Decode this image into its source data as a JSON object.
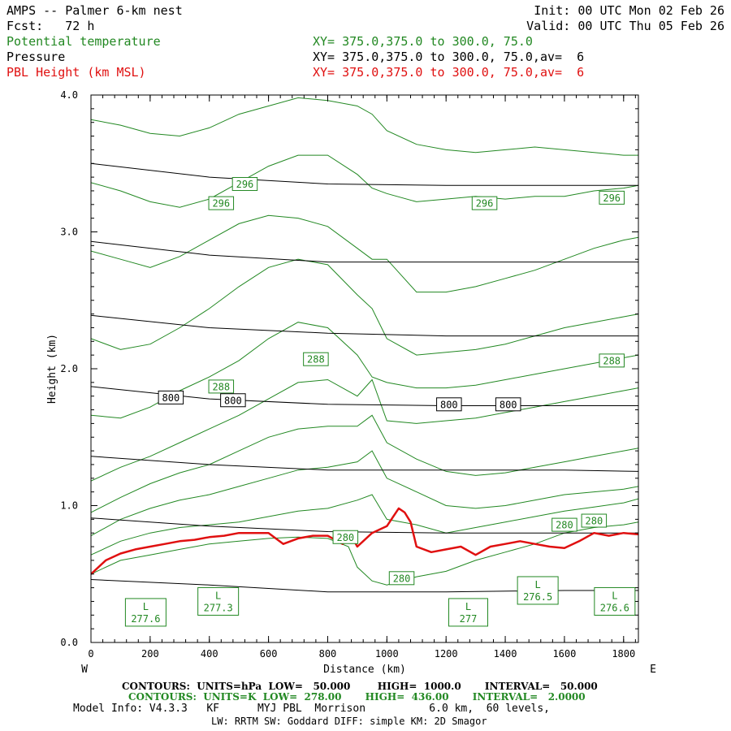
{
  "header": {
    "title": "AMPS -- Palmer 6-km nest",
    "forecast": "Fcst:   72 h",
    "init": "Init: 00 UTC Mon 02 Feb 26",
    "valid": "Valid: 00 UTC Thu 05 Feb 26",
    "field1_name": "Potential temperature",
    "field1_xy": "XY= 375.0,375.0 to 300.0, 75.0",
    "field2_name": "Pressure",
    "field2_xy": "XY= 375.0,375.0 to 300.0, 75.0,av=  6",
    "field3_name": "PBL Height (km MSL)",
    "field3_xy": "XY= 375.0,375.0 to 300.0, 75.0,av=  6"
  },
  "footer": {
    "pressure_contours": "CONTOURS:  UNITS=hPa  LOW=   50.000        HIGH=  1000.0       INTERVAL=   50.000",
    "theta_contours": "CONTOURS:  UNITS=K  LOW=  278.00       HIGH=  436.00       INTERVAL=   2.0000",
    "model_info": "Model Info: V4.3.3   KF      MYJ PBL  Morrison          6.0 km,  60 levels,",
    "model_info2": "LW: RRTM SW: Goddard DIFF: simple KM: 2D Smagor"
  },
  "colors": {
    "theta": "#228822",
    "pressure": "#000000",
    "pbl": "#e01010"
  },
  "chart_data": {
    "type": "line",
    "xlabel": "Distance (km)",
    "ylabel": "Height (km)",
    "xlim": [
      0,
      1850
    ],
    "ylim": [
      0,
      4.0
    ],
    "x_ticks": [
      "0",
      "200",
      "400",
      "600",
      "800",
      "1000",
      "1200",
      "1400",
      "1600",
      "1800"
    ],
    "y_ticks": [
      "0.0",
      "1.0",
      "2.0",
      "3.0",
      "4.0"
    ],
    "left_end_label": "W",
    "right_end_label": "E",
    "pressure_isobars": [
      {
        "x": [
          0,
          400,
          800,
          1200,
          1600,
          1850
        ],
        "y": [
          0.46,
          0.42,
          0.37,
          0.37,
          0.38,
          0.38
        ]
      },
      {
        "x": [
          0,
          400,
          800,
          1200,
          1600,
          1850
        ],
        "y": [
          0.91,
          0.85,
          0.81,
          0.8,
          0.8,
          0.8
        ]
      },
      {
        "x": [
          0,
          400,
          800,
          1200,
          1600,
          1850
        ],
        "y": [
          1.36,
          1.3,
          1.26,
          1.26,
          1.26,
          1.25
        ]
      },
      {
        "x": [
          0,
          400,
          800,
          1200,
          1600,
          1850
        ],
        "y": [
          1.87,
          1.78,
          1.74,
          1.73,
          1.73,
          1.73
        ]
      },
      {
        "x": [
          0,
          400,
          800,
          1200,
          1600,
          1850
        ],
        "y": [
          2.39,
          2.3,
          2.26,
          2.24,
          2.24,
          2.24
        ]
      },
      {
        "x": [
          0,
          400,
          800,
          1200,
          1600,
          1850
        ],
        "y": [
          2.93,
          2.83,
          2.78,
          2.78,
          2.78,
          2.78
        ]
      },
      {
        "x": [
          0,
          400,
          800,
          1200,
          1600,
          1850
        ],
        "y": [
          3.5,
          3.4,
          3.35,
          3.34,
          3.34,
          3.34
        ]
      }
    ],
    "pressure_labels": [
      {
        "text": "800",
        "x": 270,
        "y": 1.79
      },
      {
        "text": "800",
        "x": 480,
        "y": 1.77
      },
      {
        "text": "800",
        "x": 1210,
        "y": 1.74
      },
      {
        "text": "800",
        "x": 1410,
        "y": 1.74
      }
    ],
    "theta_isentropes": [
      {
        "x": [
          0,
          100,
          200,
          300,
          400,
          500,
          600,
          700,
          800,
          870,
          900,
          950,
          1000,
          1100,
          1200,
          1300,
          1400,
          1500,
          1600,
          1700,
          1800,
          1850
        ],
        "y": [
          0.5,
          0.6,
          0.64,
          0.68,
          0.72,
          0.74,
          0.76,
          0.77,
          0.76,
          0.7,
          0.55,
          0.45,
          0.42,
          0.48,
          0.52,
          0.6,
          0.66,
          0.72,
          0.8,
          0.84,
          0.86,
          0.88
        ]
      },
      {
        "x": [
          0,
          100,
          200,
          300,
          400,
          500,
          600,
          700,
          800,
          900,
          950,
          1000,
          1100,
          1200,
          1300,
          1400,
          1500,
          1600,
          1700,
          1800,
          1850
        ],
        "y": [
          0.64,
          0.74,
          0.8,
          0.84,
          0.86,
          0.88,
          0.92,
          0.96,
          0.98,
          1.04,
          1.08,
          0.9,
          0.86,
          0.8,
          0.84,
          0.88,
          0.92,
          0.96,
          0.99,
          1.02,
          1.05
        ]
      },
      {
        "x": [
          0,
          100,
          200,
          300,
          400,
          500,
          600,
          700,
          800,
          900,
          950,
          1000,
          1100,
          1200,
          1300,
          1400,
          1500,
          1600,
          1700,
          1800,
          1850
        ],
        "y": [
          0.78,
          0.9,
          0.98,
          1.04,
          1.08,
          1.14,
          1.2,
          1.26,
          1.28,
          1.32,
          1.4,
          1.2,
          1.1,
          1.0,
          0.98,
          1.0,
          1.04,
          1.08,
          1.1,
          1.12,
          1.14
        ]
      },
      {
        "x": [
          0,
          100,
          200,
          300,
          400,
          500,
          600,
          700,
          800,
          900,
          950,
          1000,
          1100,
          1200,
          1300,
          1400,
          1500,
          1600,
          1700,
          1800,
          1850
        ],
        "y": [
          0.95,
          1.06,
          1.16,
          1.24,
          1.3,
          1.4,
          1.5,
          1.56,
          1.58,
          1.58,
          1.66,
          1.46,
          1.34,
          1.25,
          1.22,
          1.24,
          1.28,
          1.32,
          1.36,
          1.4,
          1.42
        ]
      },
      {
        "x": [
          0,
          100,
          200,
          300,
          400,
          500,
          600,
          700,
          800,
          900,
          950,
          1000,
          1100,
          1200,
          1300,
          1400,
          1500,
          1600,
          1700,
          1800,
          1850
        ],
        "y": [
          1.18,
          1.28,
          1.36,
          1.46,
          1.56,
          1.66,
          1.78,
          1.9,
          1.92,
          1.8,
          1.92,
          1.62,
          1.6,
          1.62,
          1.64,
          1.68,
          1.72,
          1.76,
          1.8,
          1.84,
          1.86
        ]
      },
      {
        "x": [
          0,
          100,
          200,
          300,
          400,
          500,
          600,
          700,
          800,
          900,
          950,
          1000,
          1100,
          1200,
          1300,
          1400,
          1500,
          1600,
          1700,
          1800,
          1850
        ],
        "y": [
          1.66,
          1.64,
          1.72,
          1.84,
          1.94,
          2.06,
          2.22,
          2.34,
          2.3,
          2.1,
          1.94,
          1.9,
          1.86,
          1.86,
          1.88,
          1.92,
          1.96,
          2.0,
          2.04,
          2.08,
          2.1
        ]
      },
      {
        "x": [
          0,
          100,
          200,
          300,
          400,
          500,
          600,
          700,
          800,
          900,
          950,
          1000,
          1100,
          1200,
          1300,
          1400,
          1500,
          1600,
          1700,
          1800,
          1850
        ],
        "y": [
          2.22,
          2.14,
          2.18,
          2.3,
          2.44,
          2.6,
          2.74,
          2.8,
          2.76,
          2.54,
          2.44,
          2.22,
          2.1,
          2.12,
          2.14,
          2.18,
          2.24,
          2.3,
          2.34,
          2.38,
          2.4
        ]
      },
      {
        "x": [
          0,
          100,
          200,
          300,
          400,
          500,
          600,
          700,
          800,
          900,
          950,
          1000,
          1100,
          1200,
          1300,
          1400,
          1500,
          1600,
          1700,
          1800,
          1850
        ],
        "y": [
          2.86,
          2.8,
          2.74,
          2.82,
          2.94,
          3.06,
          3.12,
          3.1,
          3.04,
          2.88,
          2.8,
          2.8,
          2.56,
          2.56,
          2.6,
          2.66,
          2.72,
          2.8,
          2.88,
          2.94,
          2.96
        ]
      },
      {
        "x": [
          0,
          100,
          200,
          300,
          400,
          500,
          600,
          700,
          800,
          900,
          950,
          1000,
          1100,
          1200,
          1300,
          1400,
          1500,
          1600,
          1700,
          1800,
          1850
        ],
        "y": [
          3.36,
          3.3,
          3.22,
          3.18,
          3.24,
          3.36,
          3.48,
          3.56,
          3.56,
          3.42,
          3.32,
          3.28,
          3.22,
          3.24,
          3.26,
          3.24,
          3.26,
          3.26,
          3.3,
          3.32,
          3.34
        ]
      },
      {
        "x": [
          0,
          100,
          200,
          300,
          400,
          500,
          600,
          700,
          800,
          900,
          950,
          1000,
          1100,
          1200,
          1300,
          1400,
          1500,
          1600,
          1700,
          1800,
          1850
        ],
        "y": [
          3.82,
          3.78,
          3.72,
          3.7,
          3.76,
          3.86,
          3.92,
          3.98,
          3.96,
          3.92,
          3.86,
          3.74,
          3.64,
          3.6,
          3.58,
          3.6,
          3.62,
          3.6,
          3.58,
          3.56,
          3.56
        ]
      }
    ],
    "theta_labels": [
      {
        "text": "296",
        "x": 520,
        "y": 3.35
      },
      {
        "text": "296",
        "x": 440,
        "y": 3.21
      },
      {
        "text": "296",
        "x": 1330,
        "y": 3.21
      },
      {
        "text": "296",
        "x": 1760,
        "y": 3.25
      },
      {
        "text": "288",
        "x": 760,
        "y": 2.07
      },
      {
        "text": "288",
        "x": 440,
        "y": 1.87
      },
      {
        "text": "288",
        "x": 1760,
        "y": 2.06
      },
      {
        "text": "280",
        "x": 860,
        "y": 0.77
      },
      {
        "text": "280",
        "x": 1050,
        "y": 0.47
      },
      {
        "text": "280",
        "x": 1600,
        "y": 0.86
      },
      {
        "text": "280",
        "x": 1700,
        "y": 0.89
      }
    ],
    "low_labels": [
      {
        "letter": "L",
        "value": "277.6",
        "x": 185,
        "y": 0.22
      },
      {
        "letter": "L",
        "value": "277.3",
        "x": 430,
        "y": 0.3
      },
      {
        "letter": "L",
        "value": "277",
        "x": 1275,
        "y": 0.22
      },
      {
        "letter": "L",
        "value": "276.5",
        "x": 1510,
        "y": 0.38
      },
      {
        "letter": "L",
        "value": "276.6",
        "x": 1770,
        "y": 0.3
      }
    ],
    "pbl_height": {
      "x": [
        0,
        50,
        100,
        150,
        200,
        250,
        300,
        350,
        400,
        450,
        500,
        550,
        600,
        650,
        700,
        750,
        800,
        850,
        880,
        900,
        950,
        1000,
        1040,
        1060,
        1080,
        1100,
        1150,
        1200,
        1250,
        1300,
        1350,
        1400,
        1450,
        1500,
        1550,
        1600,
        1650,
        1700,
        1750,
        1800,
        1850
      ],
      "y": [
        0.5,
        0.6,
        0.65,
        0.68,
        0.7,
        0.72,
        0.74,
        0.75,
        0.77,
        0.78,
        0.8,
        0.8,
        0.8,
        0.72,
        0.76,
        0.78,
        0.78,
        0.72,
        0.78,
        0.7,
        0.8,
        0.85,
        0.98,
        0.95,
        0.88,
        0.7,
        0.66,
        0.68,
        0.7,
        0.64,
        0.7,
        0.72,
        0.74,
        0.72,
        0.7,
        0.69,
        0.74,
        0.8,
        0.78,
        0.8,
        0.79
      ]
    }
  }
}
